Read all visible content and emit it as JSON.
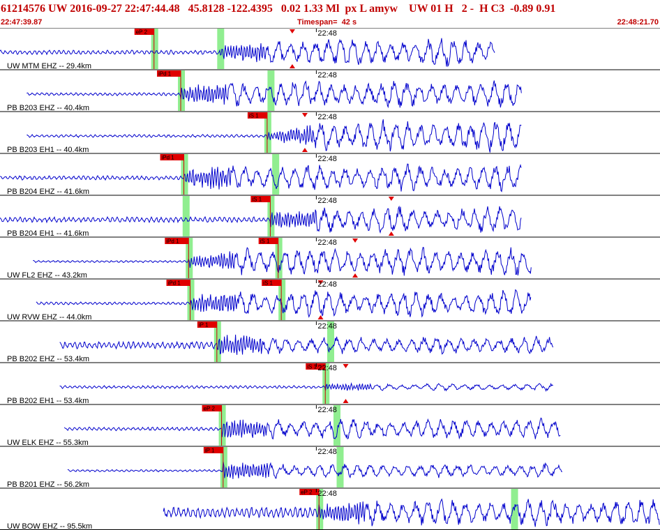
{
  "header": {
    "event_id": "61214576",
    "network": "UW",
    "datetime": "2016-09-27 22:47:44.48",
    "lat": "45.8128",
    "lon": "-122.4395",
    "depth": "0.02",
    "magnitude": "1.33 Ml",
    "etype": "px",
    "review": "L amyw",
    "source": "UW 01",
    "quality": "H",
    "count": "2",
    "flag": "-",
    "hq": "H C3",
    "v1": "-0.89",
    "v2": "0.91",
    "start_time": "22:47:39.87",
    "timespan_label": "Timespan=",
    "timespan_value": "42 s",
    "end_time": "22:48:21.70"
  },
  "colors": {
    "title": "#c00000",
    "trace": "#0000cc",
    "pick": "#e00000",
    "window": "#90ee90",
    "border": "#000000"
  },
  "minute_label": "22:48",
  "chart_data": {
    "type": "seismogram",
    "time_range_s": [
      0,
      42
    ],
    "minute_mark_s": 20.13,
    "panels": [
      {
        "label": "UW MTM EHZ -- 29.4km",
        "trace_start": 0.0,
        "trace_end": 31.5,
        "onset": 14.0,
        "picks": [
          {
            "text": "eP 2",
            "t": 9.8
          }
        ],
        "windows": [
          9.8,
          14.0
        ],
        "amp": [
          0.12,
          0.35,
          0.8
        ],
        "amax": 0.9,
        "markers": [
          18.6
        ]
      },
      {
        "label": "PB B203 EHZ -- 40.4km",
        "trace_start": 1.7,
        "trace_end": 33.2,
        "onset": 11.5,
        "picks": [
          {
            "text": "iPd 1",
            "t": 11.5
          }
        ],
        "windows": [
          11.5,
          17.2
        ],
        "amp": [
          0.08,
          0.45,
          0.75
        ],
        "amax": 0.85,
        "markers": []
      },
      {
        "label": "PB B203 EH1 -- 40.4km",
        "trace_start": 1.7,
        "trace_end": 33.2,
        "onset": 17.0,
        "picks": [
          {
            "text": "iS 1",
            "t": 17.0
          }
        ],
        "windows": [
          17.0
        ],
        "amp": [
          0.08,
          0.2,
          0.9
        ],
        "amax": 0.95,
        "markers": [
          19.4
        ]
      },
      {
        "label": "PB B204 EHZ -- 41.6km",
        "trace_start": 0.0,
        "trace_end": 33.2,
        "onset": 11.7,
        "picks": [
          {
            "text": "iPd 1",
            "t": 11.7
          }
        ],
        "windows": [
          11.7,
          17.5
        ],
        "amp": [
          0.12,
          0.5,
          0.75
        ],
        "amax": 0.85,
        "markers": []
      },
      {
        "label": "PB B204 EH1 -- 41.6km",
        "trace_start": 0.0,
        "trace_end": 33.2,
        "onset": 17.2,
        "picks": [
          {
            "text": "iS 1",
            "t": 17.2
          }
        ],
        "windows": [
          11.8,
          17.2
        ],
        "amp": [
          0.15,
          0.45,
          0.75
        ],
        "amax": 0.85,
        "markers": [
          24.9
        ]
      },
      {
        "label": "UW FL2 EHZ -- 43.2km",
        "trace_start": 2.1,
        "trace_end": 33.8,
        "onset": 12.0,
        "picks": [
          {
            "text": "iPd 1",
            "t": 12.0
          },
          {
            "text": "iS 1",
            "t": 17.7
          }
        ],
        "windows": [
          12.0,
          17.7
        ],
        "amp": [
          0.06,
          0.35,
          0.8
        ],
        "amax": 0.9,
        "markers": [
          22.6
        ]
      },
      {
        "label": "UW RVW EHZ -- 44.0km",
        "trace_start": 2.3,
        "trace_end": 33.8,
        "onset": 12.1,
        "picks": [
          {
            "text": "iPd 1",
            "t": 12.1
          },
          {
            "text": "iS 1",
            "t": 17.9
          }
        ],
        "windows": [
          12.1,
          17.9
        ],
        "amp": [
          0.08,
          0.45,
          0.75
        ],
        "amax": 0.85,
        "markers": [
          20.4
        ]
      },
      {
        "label": "PB B202 EHZ -- 53.4km",
        "trace_start": 3.8,
        "trace_end": 35.2,
        "onset": 13.8,
        "picks": [
          {
            "text": "iP 1",
            "t": 13.8
          }
        ],
        "windows": [
          13.8,
          21.0
        ],
        "amp": [
          0.2,
          0.6,
          0.5
        ],
        "amax": 0.8,
        "markers": []
      },
      {
        "label": "PB B202 EH1 -- 53.4km",
        "trace_start": 3.8,
        "trace_end": 35.2,
        "onset": 20.7,
        "picks": [
          {
            "text": "iS 1",
            "t": 20.7
          }
        ],
        "windows": [
          20.7
        ],
        "amp": [
          0.08,
          0.2,
          0.2
        ],
        "amax": 0.8,
        "markers": [
          22.0
        ]
      },
      {
        "label": "UW ELK EHZ -- 55.3km",
        "trace_start": 4.1,
        "trace_end": 35.7,
        "onset": 14.1,
        "picks": [
          {
            "text": "eP 2",
            "t": 14.1
          }
        ],
        "windows": [
          14.1,
          21.4
        ],
        "amp": [
          0.1,
          0.55,
          0.6
        ],
        "amax": 0.8,
        "markers": []
      },
      {
        "label": "PB B201 EHZ -- 56.2km",
        "trace_start": 4.3,
        "trace_end": 35.8,
        "onset": 14.2,
        "picks": [
          {
            "text": "iP 1",
            "t": 14.2
          }
        ],
        "windows": [
          14.2,
          21.6
        ],
        "amp": [
          0.06,
          0.5,
          0.4
        ],
        "amax": 0.8,
        "markers": []
      },
      {
        "label": "UW BOW EHZ -- 95.5km",
        "trace_start": 10.4,
        "trace_end": 42.0,
        "onset": 20.3,
        "picks": [
          {
            "text": "eP 2",
            "t": 20.3
          }
        ],
        "windows": [
          20.3,
          32.7
        ],
        "amp": [
          0.3,
          0.45,
          0.8
        ],
        "amax": 0.9,
        "markers": []
      }
    ]
  }
}
